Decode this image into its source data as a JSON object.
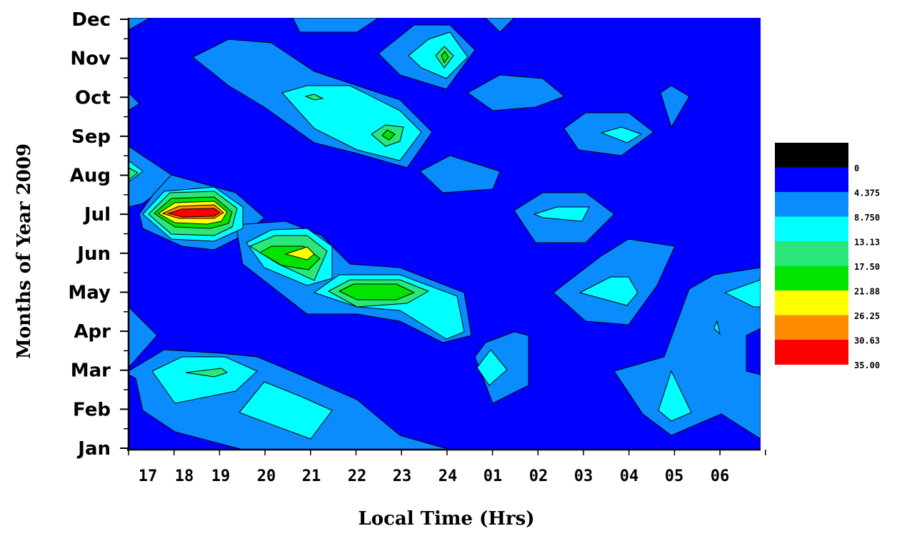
{
  "chart_data": {
    "type": "contour",
    "xlabel": "Local Time (Hrs)",
    "ylabel": "Months of Year 2009",
    "x_ticks": [
      "17",
      "18",
      "19",
      "20",
      "21",
      "22",
      "23",
      "24",
      "01",
      "02",
      "03",
      "04",
      "05",
      "06"
    ],
    "y_ticks": [
      "Jan",
      "Feb",
      "Mar",
      "Apr",
      "May",
      "Jun",
      "Jul",
      "Aug",
      "Sep",
      "Oct",
      "Nov",
      "Dec"
    ],
    "levels": [
      "0",
      "4.375",
      "8.750",
      "13.13",
      "17.50",
      "21.88",
      "26.25",
      "30.63",
      "35.00"
    ],
    "colors": [
      "#000000",
      "#0000ff",
      "#0a8cff",
      "#00ffff",
      "#29e879",
      "#00e400",
      "#ffff00",
      "#ff8c00",
      "#ff0000"
    ],
    "grid": false,
    "legend_position": "right"
  }
}
